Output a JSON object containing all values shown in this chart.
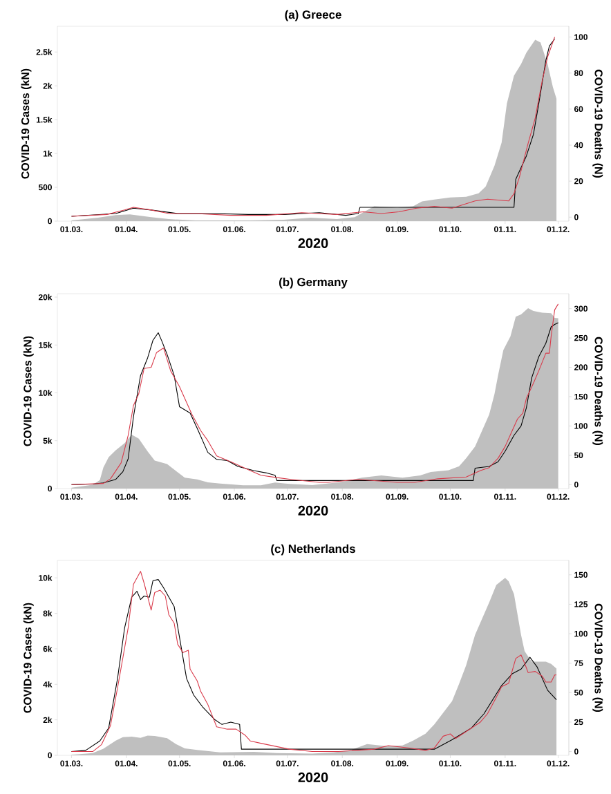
{
  "chart_data": [
    {
      "type": "line",
      "title": "(a) Greece",
      "xlabel": "2020",
      "ylabel": "COVID-19 Cases (kN)",
      "y2label": "COVID-19 Deaths (N)",
      "xlim": [
        "2020-02-22",
        "2020-12-07"
      ],
      "xticks": [
        {
          "value": "2020-03-01",
          "label": "01.03."
        },
        {
          "value": "2020-04-01",
          "label": "01.04."
        },
        {
          "value": "2020-05-01",
          "label": "01.05."
        },
        {
          "value": "2020-06-01",
          "label": "01.06."
        },
        {
          "value": "2020-07-01",
          "label": "01.07."
        },
        {
          "value": "2020-08-01",
          "label": "01.08."
        },
        {
          "value": "2020-09-01",
          "label": "01.09."
        },
        {
          "value": "2020-10-01",
          "label": "01.10."
        },
        {
          "value": "2020-11-01",
          "label": "01.11."
        },
        {
          "value": "2020-12-01",
          "label": "01.12."
        }
      ],
      "ylim": [
        0,
        2880
      ],
      "yticks": [
        0,
        500,
        {
          "value": 1000,
          "label": "1k"
        },
        {
          "value": 1500,
          "label": "1.5k"
        },
        {
          "value": 2000,
          "label": "2k"
        },
        {
          "value": 2500,
          "label": "2.5k"
        }
      ],
      "y2lim": [
        -2.2,
        106
      ],
      "y2ticks": [
        0,
        20,
        40,
        60,
        80,
        100
      ],
      "series": [
        {
          "type": "area",
          "color": "#bfbfbf",
          "x": [
            "2020-03-01",
            "2020-03-16",
            "2020-03-26",
            "2020-04-03",
            "2020-04-15",
            "2020-04-25",
            "2020-05-10",
            "2020-06-09",
            "2020-06-29",
            "2020-07-14",
            "2020-07-29",
            "2020-08-08",
            "2020-08-19",
            "2020-09-01",
            "2020-09-10",
            "2020-09-15",
            "2020-09-22",
            "2020-10-01",
            "2020-10-10",
            "2020-10-17",
            "2020-10-21",
            "2020-10-26",
            "2020-10-30",
            "2020-11-02",
            "2020-11-06",
            "2020-11-10",
            "2020-11-13",
            "2020-11-18",
            "2020-11-21",
            "2020-11-25",
            "2020-11-28",
            "2020-11-30"
          ],
          "values": [
            10,
            50,
            90,
            100,
            60,
            30,
            10,
            10,
            20,
            50,
            30,
            60,
            220,
            200,
            220,
            290,
            320,
            350,
            360,
            410,
            510,
            820,
            1160,
            1740,
            2150,
            2320,
            2490,
            2680,
            2640,
            2320,
            1980,
            1810
          ]
        },
        {
          "type": "line",
          "axis": "y2",
          "color": "#000000",
          "x": [
            "2020-03-01",
            "2020-03-26",
            "2020-04-05",
            "2020-04-15",
            "2020-04-30",
            "2020-05-20",
            "2020-06-09",
            "2020-06-29",
            "2020-07-19",
            "2020-08-03",
            "2020-08-10",
            "2020-08-11",
            "2020-11-06",
            "2020-11-07",
            "2020-11-13",
            "2020-11-17",
            "2020-11-20",
            "2020-11-24",
            "2020-11-26",
            "2020-11-29"
          ],
          "values": [
            0.5,
            2,
            5,
            4,
            2,
            2,
            1.5,
            1.5,
            2.5,
            1,
            2,
            5.5,
            5.5,
            21,
            34,
            46,
            63,
            87,
            95,
            99
          ]
        },
        {
          "type": "line",
          "axis": "y2",
          "color": "#d93a4a",
          "x": [
            "2020-03-01",
            "2020-03-21",
            "2020-03-31",
            "2020-04-05",
            "2020-04-15",
            "2020-04-25",
            "2020-05-10",
            "2020-05-30",
            "2020-06-19",
            "2020-07-09",
            "2020-07-29",
            "2020-08-13",
            "2020-08-23",
            "2020-09-02",
            "2020-09-12",
            "2020-09-22",
            "2020-10-02",
            "2020-10-15",
            "2020-10-22",
            "2020-11-03",
            "2020-11-06",
            "2020-11-09",
            "2020-11-14",
            "2020-11-18",
            "2020-11-22",
            "2020-11-25",
            "2020-11-29"
          ],
          "values": [
            0.5,
            1.5,
            4,
            5.5,
            4,
            2,
            2,
            1,
            1,
            2.5,
            1.5,
            3,
            2,
            3,
            5,
            6,
            5,
            9,
            10,
            9,
            13,
            22,
            41,
            55,
            76,
            89,
            100
          ]
        }
      ]
    },
    {
      "type": "line",
      "title": "(b) Germany",
      "xlabel": "2020",
      "ylabel": "COVID-19 Cases (kN)",
      "y2label": "COVID-19 Deaths (N)",
      "xlim": [
        "2020-02-22",
        "2020-12-07"
      ],
      "xticks": [
        {
          "value": "2020-03-01",
          "label": "01.03."
        },
        {
          "value": "2020-04-01",
          "label": "01.04."
        },
        {
          "value": "2020-05-01",
          "label": "01.05."
        },
        {
          "value": "2020-06-01",
          "label": "01.06."
        },
        {
          "value": "2020-07-01",
          "label": "01.07."
        },
        {
          "value": "2020-08-01",
          "label": "01.08."
        },
        {
          "value": "2020-09-01",
          "label": "01.09."
        },
        {
          "value": "2020-10-01",
          "label": "01.10."
        },
        {
          "value": "2020-11-01",
          "label": "01.11."
        },
        {
          "value": "2020-12-01",
          "label": "01.12."
        }
      ],
      "ylim": [
        0,
        20360
      ],
      "yticks": [
        0,
        {
          "value": 5000,
          "label": "5k"
        },
        {
          "value": 10000,
          "label": "10k"
        },
        {
          "value": 15000,
          "label": "15k"
        },
        {
          "value": 20000,
          "label": "20k"
        }
      ],
      "y2lim": [
        -6.7,
        325.5
      ],
      "y2ticks": [
        0,
        50,
        100,
        150,
        200,
        250,
        300
      ],
      "series": [
        {
          "type": "area",
          "color": "#bfbfbf",
          "x": [
            "2020-03-01",
            "2020-03-13",
            "2020-03-17",
            "2020-03-19",
            "2020-03-22",
            "2020-03-26",
            "2020-03-31",
            "2020-04-04",
            "2020-04-08",
            "2020-04-13",
            "2020-04-17",
            "2020-04-24",
            "2020-04-29",
            "2020-05-04",
            "2020-05-11",
            "2020-05-17",
            "2020-05-24",
            "2020-06-06",
            "2020-06-16",
            "2020-06-24",
            "2020-07-02",
            "2020-07-15",
            "2020-07-30",
            "2020-08-12",
            "2020-08-23",
            "2020-09-04",
            "2020-09-14",
            "2020-09-20",
            "2020-09-30",
            "2020-10-06",
            "2020-10-10",
            "2020-10-15",
            "2020-10-19",
            "2020-10-23",
            "2020-10-26",
            "2020-10-28",
            "2020-10-31",
            "2020-11-04",
            "2020-11-07",
            "2020-11-10",
            "2020-11-14",
            "2020-11-17",
            "2020-11-22",
            "2020-11-27",
            "2020-11-29",
            "2020-12-01"
          ],
          "values": [
            100,
            400,
            890,
            2210,
            3290,
            4010,
            4740,
            5630,
            5220,
            3890,
            2930,
            2570,
            1850,
            1130,
            960,
            650,
            530,
            340,
            340,
            630,
            480,
            360,
            650,
            1130,
            1370,
            1130,
            1370,
            1730,
            1920,
            2330,
            3170,
            4380,
            6060,
            7740,
            9900,
            11830,
            14470,
            15910,
            17960,
            18200,
            18850,
            18560,
            18370,
            18320,
            17840,
            17790
          ]
        },
        {
          "type": "line",
          "axis": "y2",
          "color": "#000000",
          "x": [
            "2020-03-01",
            "2020-03-13",
            "2020-03-19",
            "2020-03-26",
            "2020-03-30",
            "2020-04-02",
            "2020-04-05",
            "2020-04-09",
            "2020-04-13",
            "2020-04-16",
            "2020-04-19",
            "2020-04-21",
            "2020-04-24",
            "2020-04-28",
            "2020-05-01",
            "2020-05-07",
            "2020-05-11",
            "2020-05-17",
            "2020-05-22",
            "2020-05-28",
            "2020-06-03",
            "2020-06-12",
            "2020-06-19",
            "2020-06-24",
            "2020-06-25",
            "2020-10-14",
            "2020-10-15",
            "2020-10-23",
            "2020-10-28",
            "2020-11-01",
            "2020-11-06",
            "2020-11-10",
            "2020-11-13",
            "2020-11-16",
            "2020-11-20",
            "2020-11-24",
            "2020-11-27",
            "2020-11-29",
            "2020-12-01"
          ],
          "values": [
            0,
            1,
            3,
            9,
            22,
            44,
            116,
            186,
            216,
            246,
            259,
            245,
            222,
            186,
            133,
            122,
            96,
            55,
            43,
            41,
            31,
            24,
            20,
            16,
            7,
            7,
            28,
            31,
            39,
            57,
            84,
            100,
            131,
            182,
            218,
            241,
            269,
            273,
            276
          ]
        },
        {
          "type": "line",
          "axis": "y2",
          "color": "#d93a4a",
          "x": [
            "2020-03-01",
            "2020-03-19",
            "2020-03-23",
            "2020-03-29",
            "2020-04-02",
            "2020-04-05",
            "2020-04-08",
            "2020-04-11",
            "2020-04-15",
            "2020-04-18",
            "2020-04-22",
            "2020-04-26",
            "2020-05-01",
            "2020-05-08",
            "2020-05-13",
            "2020-05-17",
            "2020-05-22",
            "2020-05-30",
            "2020-06-10",
            "2020-06-16",
            "2020-06-25",
            "2020-07-03",
            "2020-07-19",
            "2020-07-24",
            "2020-08-10",
            "2020-09-01",
            "2020-09-11",
            "2020-09-24",
            "2020-10-10",
            "2020-10-18",
            "2020-10-23",
            "2020-10-28",
            "2020-11-01",
            "2020-11-05",
            "2020-11-08",
            "2020-11-11",
            "2020-11-13",
            "2020-11-17",
            "2020-11-20",
            "2020-11-24",
            "2020-11-26",
            "2020-11-27",
            "2020-11-29",
            "2020-12-01"
          ],
          "values": [
            0,
            2,
            10,
            37,
            84,
            135,
            155,
            198,
            200,
            225,
            233,
            194,
            167,
            120,
            92,
            75,
            49,
            39,
            24,
            16,
            12,
            9,
            4,
            4,
            9,
            4,
            4,
            10,
            13,
            24,
            29,
            45,
            65,
            92,
            112,
            122,
            147,
            173,
            194,
            224,
            224,
            253,
            298,
            308
          ]
        }
      ]
    },
    {
      "type": "line",
      "title": "(c) Netherlands",
      "xlabel": "2020",
      "ylabel": "COVID-19 Cases (kN)",
      "y2label": "COVID-19 Deaths (N)",
      "xlim": [
        "2020-02-22",
        "2020-12-07"
      ],
      "xticks": [
        {
          "value": "2020-03-01",
          "label": "01.03."
        },
        {
          "value": "2020-04-01",
          "label": "01.04."
        },
        {
          "value": "2020-05-01",
          "label": "01.05."
        },
        {
          "value": "2020-06-01",
          "label": "01.06."
        },
        {
          "value": "2020-07-01",
          "label": "01.07."
        },
        {
          "value": "2020-08-01",
          "label": "01.08."
        },
        {
          "value": "2020-09-01",
          "label": "01.09."
        },
        {
          "value": "2020-10-01",
          "label": "01.10."
        },
        {
          "value": "2020-11-01",
          "label": "01.11."
        },
        {
          "value": "2020-12-01",
          "label": "01.12."
        }
      ],
      "ylim": [
        0,
        10980
      ],
      "yticks": [
        0,
        {
          "value": 2000,
          "label": "2k"
        },
        {
          "value": 4000,
          "label": "4k"
        },
        {
          "value": 6000,
          "label": "6k"
        },
        {
          "value": 8000,
          "label": "8k"
        },
        {
          "value": 10000,
          "label": "10k"
        }
      ],
      "y2lim": [
        -3.2,
        162.2
      ],
      "y2ticks": [
        0,
        25,
        50,
        75,
        100,
        125,
        150
      ],
      "series": [
        {
          "type": "area",
          "color": "#bfbfbf",
          "x": [
            "2020-03-01",
            "2020-03-13",
            "2020-03-19",
            "2020-03-26",
            "2020-03-30",
            "2020-04-04",
            "2020-04-09",
            "2020-04-13",
            "2020-04-17",
            "2020-04-24",
            "2020-04-29",
            "2020-05-04",
            "2020-05-11",
            "2020-05-24",
            "2020-06-12",
            "2020-06-25",
            "2020-07-15",
            "2020-07-27",
            "2020-08-06",
            "2020-08-15",
            "2020-08-26",
            "2020-09-04",
            "2020-09-10",
            "2020-09-17",
            "2020-09-22",
            "2020-09-27",
            "2020-10-02",
            "2020-10-06",
            "2020-10-10",
            "2020-10-15",
            "2020-10-19",
            "2020-10-23",
            "2020-10-27",
            "2020-11-01",
            "2020-11-03",
            "2020-11-06",
            "2020-11-10",
            "2020-11-12",
            "2020-11-16",
            "2020-11-24",
            "2020-11-27",
            "2020-11-30"
          ],
          "values": [
            30,
            130,
            370,
            830,
            1020,
            1050,
            980,
            1110,
            1090,
            960,
            630,
            390,
            300,
            170,
            200,
            130,
            100,
            170,
            300,
            630,
            520,
            560,
            830,
            1220,
            1740,
            2400,
            3050,
            4030,
            5080,
            6790,
            7700,
            8620,
            9600,
            10000,
            9800,
            9080,
            6790,
            5870,
            5280,
            5280,
            5150,
            4890
          ]
        },
        {
          "type": "line",
          "axis": "y2",
          "color": "#000000",
          "x": [
            "2020-03-01",
            "2020-03-09",
            "2020-03-17",
            "2020-03-22",
            "2020-03-27",
            "2020-03-31",
            "2020-04-04",
            "2020-04-07",
            "2020-04-09",
            "2020-04-11",
            "2020-04-14",
            "2020-04-16",
            "2020-04-19",
            "2020-04-22",
            "2020-04-28",
            "2020-05-01",
            "2020-05-05",
            "2020-05-09",
            "2020-05-14",
            "2020-05-21",
            "2020-05-25",
            "2020-05-30",
            "2020-06-04",
            "2020-06-05",
            "2020-09-22",
            "2020-10-02",
            "2020-10-13",
            "2020-10-20",
            "2020-10-30",
            "2020-11-05",
            "2020-11-10",
            "2020-11-15",
            "2020-11-19",
            "2020-11-25",
            "2020-11-30"
          ],
          "values": [
            0,
            1,
            9,
            20,
            62,
            105,
            131,
            136,
            129,
            132,
            131,
            145,
            146,
            139,
            123,
            97,
            62,
            48,
            38,
            27,
            23,
            25,
            23,
            2,
            2,
            10,
            20,
            32,
            56,
            66,
            70,
            80,
            72,
            52,
            44
          ]
        },
        {
          "type": "line",
          "axis": "y2",
          "color": "#d93a4a",
          "x": [
            "2020-03-01",
            "2020-03-13",
            "2020-03-18",
            "2020-03-23",
            "2020-03-27",
            "2020-04-02",
            "2020-04-05",
            "2020-04-09",
            "2020-04-11",
            "2020-04-15",
            "2020-04-17",
            "2020-04-20",
            "2020-04-23",
            "2020-04-25",
            "2020-04-28",
            "2020-04-30",
            "2020-05-03",
            "2020-05-06",
            "2020-05-07",
            "2020-05-11",
            "2020-05-13",
            "2020-05-17",
            "2020-05-22",
            "2020-05-28",
            "2020-06-02",
            "2020-06-07",
            "2020-06-10",
            "2020-06-16",
            "2020-07-02",
            "2020-07-15",
            "2020-07-30",
            "2020-08-19",
            "2020-08-27",
            "2020-09-08",
            "2020-09-17",
            "2020-09-22",
            "2020-09-27",
            "2020-10-01",
            "2020-10-04",
            "2020-10-10",
            "2020-10-18",
            "2020-10-22",
            "2020-10-27",
            "2020-10-30",
            "2020-11-03",
            "2020-11-07",
            "2020-11-10",
            "2020-11-12",
            "2020-11-14",
            "2020-11-18",
            "2020-11-22",
            "2020-11-24",
            "2020-11-27",
            "2020-11-29",
            "2020-11-30"
          ],
          "values": [
            0,
            0,
            6,
            22,
            54,
            105,
            142,
            153,
            143,
            120,
            135,
            137,
            132,
            116,
            109,
            91,
            84,
            86,
            70,
            60,
            51,
            40,
            21,
            19,
            19,
            14,
            9,
            7,
            2,
            0,
            0,
            2,
            5,
            3,
            1,
            3,
            13,
            15,
            11,
            17,
            25,
            32,
            46,
            55,
            58,
            79,
            82,
            75,
            67,
            68,
            64,
            59,
            59,
            65,
            65
          ]
        }
      ]
    }
  ]
}
